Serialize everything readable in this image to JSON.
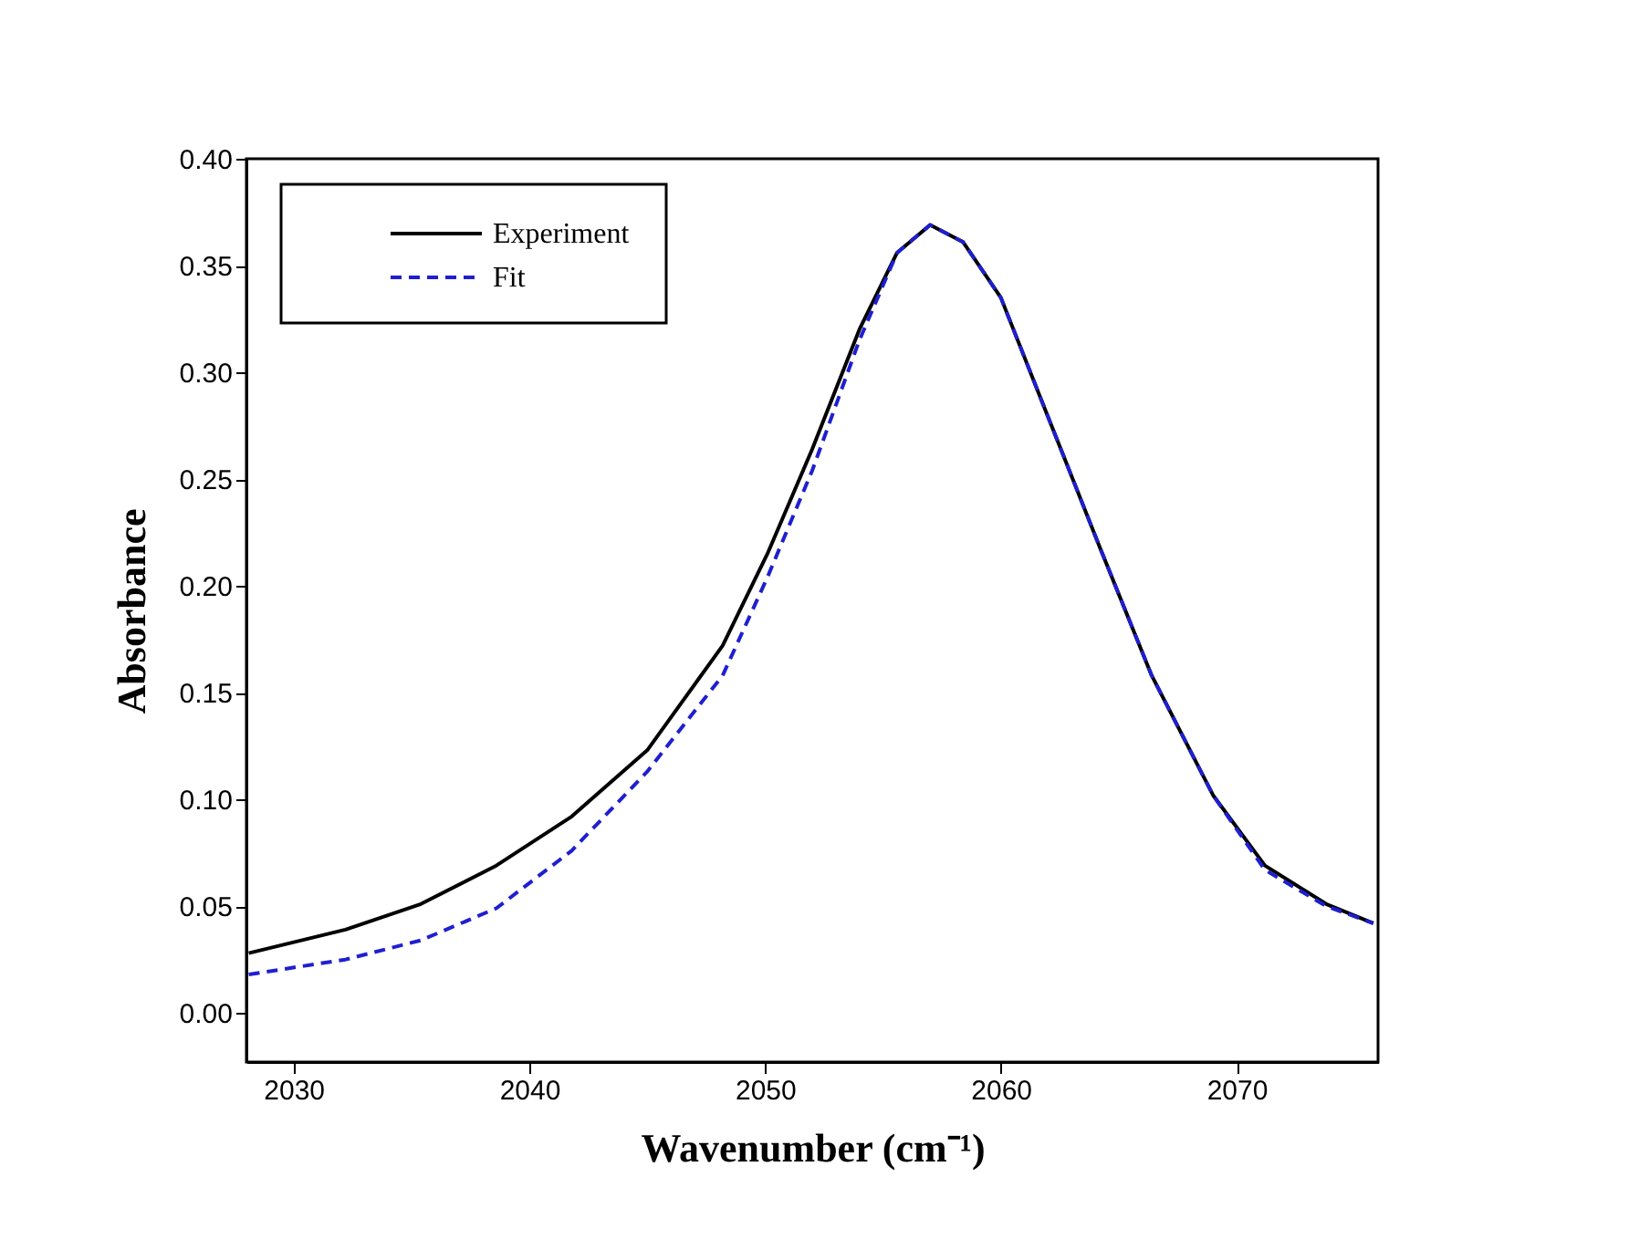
{
  "chart_data": {
    "type": "line",
    "xlabel": "Wavenumber (cm⁻¹)",
    "ylabel": "Absorbance",
    "xlim": [
      2028,
      2076
    ],
    "xticks": [
      2030,
      2040,
      2050,
      2060,
      2070
    ],
    "ylim": [
      -0.023,
      0.4
    ],
    "yticks": [
      {
        "value": 0,
        "label": "0.00"
      },
      {
        "value": 0.05,
        "label": "0.05"
      },
      {
        "value": 0.1,
        "label": "0.10"
      },
      {
        "value": 0.15,
        "label": "0.15"
      },
      {
        "value": 0.2,
        "label": "0.20"
      },
      {
        "value": 0.25,
        "label": "0.25"
      },
      {
        "value": 0.3,
        "label": "0.30"
      },
      {
        "value": 0.35,
        "label": "0.35"
      },
      {
        "value": 0.4,
        "label": "0.40"
      }
    ],
    "grid": false,
    "legend": "top left",
    "marker": "none",
    "series": [
      {
        "name": "Experiment",
        "color": "#000000",
        "line_style": "solid",
        "x": [
          2028.1,
          2032.2,
          2035.4,
          2038.6,
          2041.8,
          2045,
          2048.2,
          2050.1,
          2052,
          2054,
          2055.6,
          2057,
          2058.4,
          2060,
          2061.9,
          2064.2,
          2066.4,
          2069,
          2071.2,
          2073.8,
          2075.8
        ],
        "values": [
          0.028,
          0.039,
          0.051,
          0.069,
          0.092,
          0.123,
          0.172,
          0.215,
          0.264,
          0.32,
          0.356,
          0.369,
          0.361,
          0.335,
          0.282,
          0.218,
          0.158,
          0.102,
          0.069,
          0.051,
          0.042
        ]
      },
      {
        "name": "Fit",
        "color": "#1f1fd0",
        "line_style": "dashed",
        "x": [
          2028.1,
          2032.2,
          2035.4,
          2038.6,
          2041.8,
          2045,
          2048.2,
          2050.1,
          2052,
          2054,
          2055.6,
          2057,
          2058.4,
          2060,
          2061.9,
          2064.2,
          2066.4,
          2069,
          2071.2,
          2073.8,
          2075.8
        ],
        "values": [
          0.018,
          0.025,
          0.034,
          0.049,
          0.076,
          0.113,
          0.158,
          0.204,
          0.254,
          0.315,
          0.356,
          0.369,
          0.361,
          0.335,
          0.282,
          0.218,
          0.158,
          0.102,
          0.067,
          0.05,
          0.042
        ]
      }
    ]
  }
}
